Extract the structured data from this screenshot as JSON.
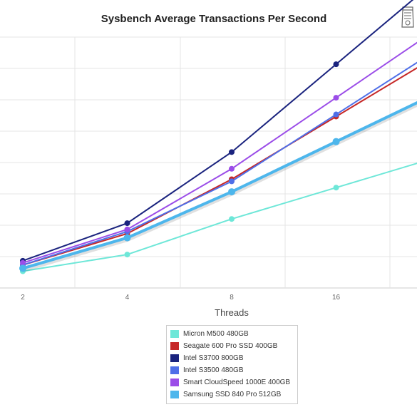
{
  "chart_data": {
    "type": "line",
    "title": "Sysbench Average Transactions Per Second",
    "xlabel": "Threads",
    "ylabel": "",
    "categories": [
      "2",
      "4",
      "8",
      "16"
    ],
    "grid": true,
    "legend_position": "bottom",
    "series": [
      {
        "name": "Micron M500 480GB",
        "color": "#6ee7d8",
        "values": [
          0.9,
          1.3,
          2.15,
          2.9
        ]
      },
      {
        "name": "Seagate 600 Pro SSD 400GB",
        "color": "#c62828",
        "values": [
          1.05,
          1.8,
          3.1,
          4.6
        ]
      },
      {
        "name": "Intel S3700 800GB",
        "color": "#1a237e",
        "values": [
          1.15,
          2.05,
          3.75,
          5.85
        ]
      },
      {
        "name": "Intel S3500 480GB",
        "color": "#4f6fe8",
        "values": [
          1.05,
          1.85,
          3.05,
          4.65
        ]
      },
      {
        "name": "Smart CloudSpeed 1000E 400GB",
        "color": "#9b4de8",
        "values": [
          1.1,
          1.9,
          3.35,
          5.05
        ]
      },
      {
        "name": "Samsung SSD 840 Pro 512GB",
        "color": "#4db6ec",
        "values": [
          0.97,
          1.7,
          2.8,
          4.0
        ]
      }
    ]
  }
}
